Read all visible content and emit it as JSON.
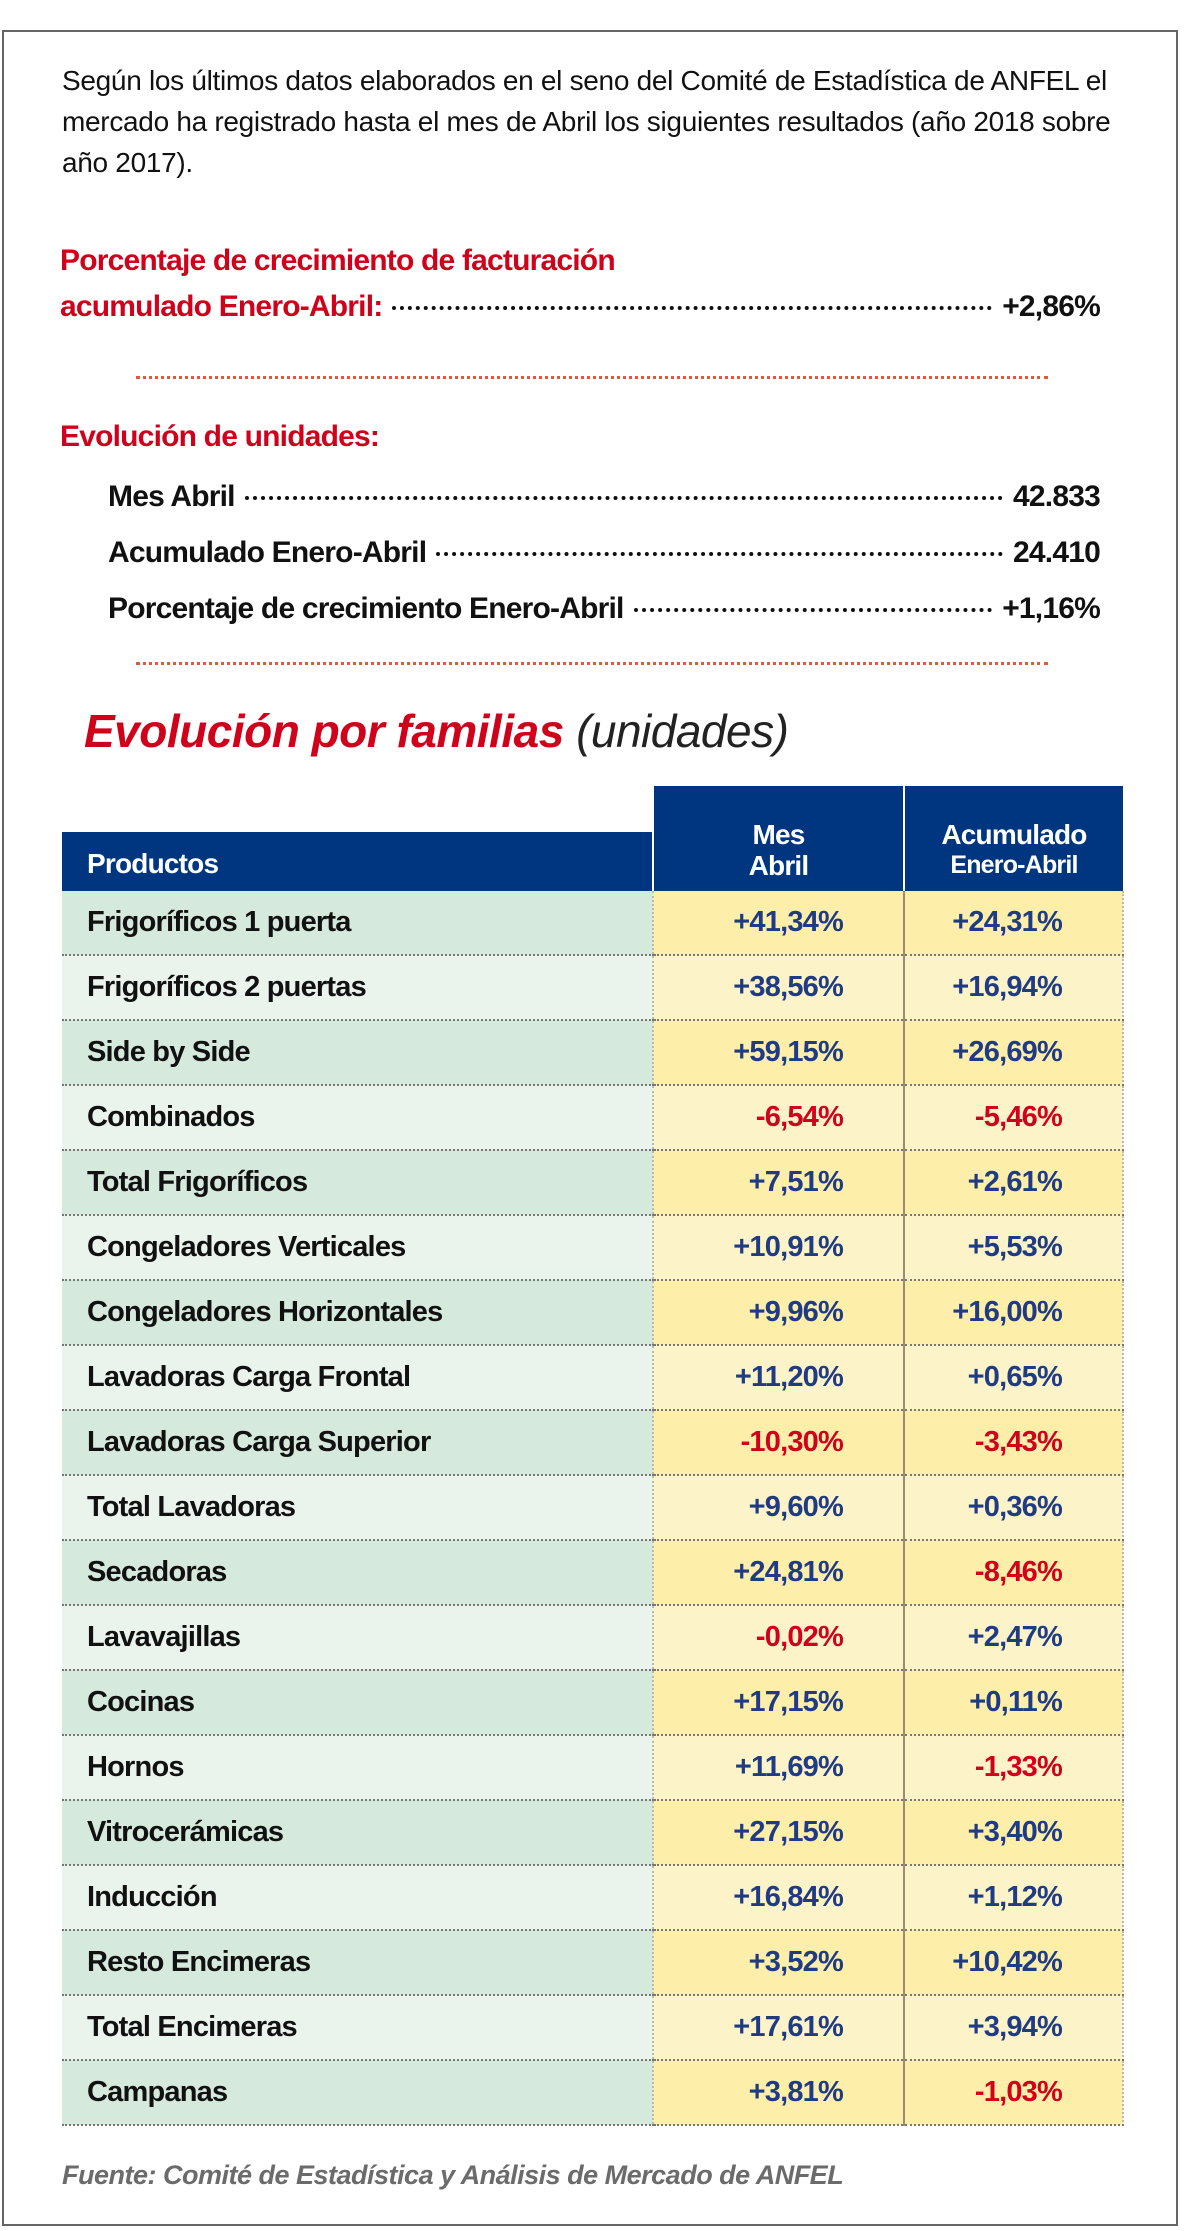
{
  "intro": "Según los últimos datos elaborados en el seno del Comité de Estadística de ANFEL el mercado ha registrado hasta el mes de Abril los siguientes resultados (año 2018 sobre año 2017).",
  "facturacion": {
    "line1": "Porcentaje de crecimiento de facturación",
    "line2": "acumulado Enero-Abril:",
    "value": "+2,86%"
  },
  "units": {
    "heading": "Evolución de unidades:",
    "items": [
      {
        "label": "Mes Abril",
        "value": "42.833"
      },
      {
        "label": "Acumulado Enero-Abril",
        "value": "24.410"
      },
      {
        "label": "Porcentaje de crecimiento Enero-Abril",
        "value": "+1,16%"
      }
    ]
  },
  "table_title": {
    "main": "Evolución por familias",
    "sub": "(unidades)"
  },
  "table": {
    "headers": {
      "product": "Productos",
      "month1": "Mes",
      "month2": "Abril",
      "acc1": "Acumulado",
      "acc2": "Enero-Abril"
    },
    "rows": [
      {
        "name": "Frigoríficos 1 puerta",
        "mes": "+41,34%",
        "acum": "+24,31%"
      },
      {
        "name": "Frigoríficos 2 puertas",
        "mes": "+38,56%",
        "acum": "+16,94%"
      },
      {
        "name": "Side by Side",
        "mes": "+59,15%",
        "acum": "+26,69%"
      },
      {
        "name": "Combinados",
        "mes": "-6,54%",
        "acum": "-5,46%"
      },
      {
        "name": "Total Frigoríficos",
        "mes": "+7,51%",
        "acum": "+2,61%"
      },
      {
        "name": "Congeladores Verticales",
        "mes": "+10,91%",
        "acum": "+5,53%"
      },
      {
        "name": "Congeladores Horizontales",
        "mes": "+9,96%",
        "acum": "+16,00%"
      },
      {
        "name": "Lavadoras Carga Frontal",
        "mes": "+11,20%",
        "acum": "+0,65%"
      },
      {
        "name": "Lavadoras Carga Superior",
        "mes": "-10,30%",
        "acum": "-3,43%"
      },
      {
        "name": "Total Lavadoras",
        "mes": "+9,60%",
        "acum": "+0,36%"
      },
      {
        "name": "Secadoras",
        "mes": "+24,81%",
        "acum": "-8,46%"
      },
      {
        "name": "Lavavajillas",
        "mes": "-0,02%",
        "acum": "+2,47%"
      },
      {
        "name": "Cocinas",
        "mes": "+17,15%",
        "acum": "+0,11%"
      },
      {
        "name": "Hornos",
        "mes": "+11,69%",
        "acum": "-1,33%"
      },
      {
        "name": "Vitrocerámicas",
        "mes": "+27,15%",
        "acum": "+3,40%"
      },
      {
        "name": "Inducción",
        "mes": "+16,84%",
        "acum": "+1,12%"
      },
      {
        "name": "Resto Encimeras",
        "mes": "+3,52%",
        "acum": "+10,42%"
      },
      {
        "name": "Total Encimeras",
        "mes": "+17,61%",
        "acum": "+3,94%"
      },
      {
        "name": "Campanas",
        "mes": "+3,81%",
        "acum": "-1,03%"
      }
    ]
  },
  "footer": "Fuente: Comité de Estadística y Análisis de Mercado de ANFEL",
  "colors": {
    "red": "#d0021b",
    "navy": "#003580",
    "positive": "#1f3b84",
    "negative": "#d0021b"
  }
}
